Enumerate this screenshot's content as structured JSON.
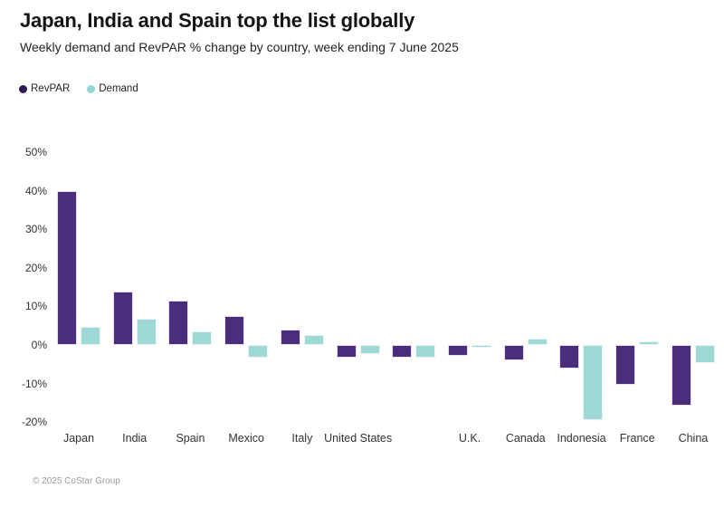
{
  "header": {
    "title": "Japan, India and Spain top the list globally",
    "subtitle": "Weekly demand and RevPAR % change by country, week ending 7 June 2025"
  },
  "footer": {
    "copyright": "© 2025 CoStar Group"
  },
  "colors": {
    "revpar_bar": "#4B2E7B",
    "revpar_bar_border": "#E9E1F1",
    "revpar_legend_dot": "#301A56",
    "demand_bar": "#9ED9D5",
    "demand_bar_border": "#EAF6F5",
    "demand_legend_dot": "#93D6D2",
    "title_text": "#141414",
    "axis_text": "#333333",
    "footer_text": "#9B9B9B"
  },
  "chart_data": {
    "type": "bar",
    "title": "Japan, India and Spain top the list globally",
    "subtitle": "Weekly demand and RevPAR % change by country, week ending 7 June 2025",
    "categories": [
      "Japan",
      "India",
      "Spain",
      "Mexico",
      "Italy",
      "United States",
      "",
      "U.K.",
      "Canada",
      "Indonesia",
      "France",
      "China"
    ],
    "series": [
      {
        "name": "RevPAR",
        "color": "#4B2E7B",
        "border": "#E9E1F1",
        "values": [
          39.8,
          13.9,
          11.6,
          7.6,
          4.0,
          -3.3,
          -3.4,
          -2.9,
          -3.9,
          -6.2,
          -10.4,
          -15.7
        ]
      },
      {
        "name": "Demand",
        "color": "#9ED9D5",
        "border": "#EAF6F5",
        "values": [
          4.8,
          6.8,
          3.6,
          -3.2,
          2.5,
          -2.4,
          -3.3,
          -0.8,
          1.6,
          -19.6,
          0.9,
          -4.8
        ]
      }
    ],
    "ylabel": "",
    "xlabel": "",
    "yticks": [
      50,
      40,
      30,
      20,
      10,
      0,
      -10,
      -20
    ],
    "ytick_labels": [
      "50%",
      "40%",
      "30%",
      "20%",
      "10%",
      "0%",
      "-10%",
      "-20%"
    ],
    "ylim": [
      -22,
      52
    ],
    "grid": false,
    "legend_position": "top-left"
  }
}
